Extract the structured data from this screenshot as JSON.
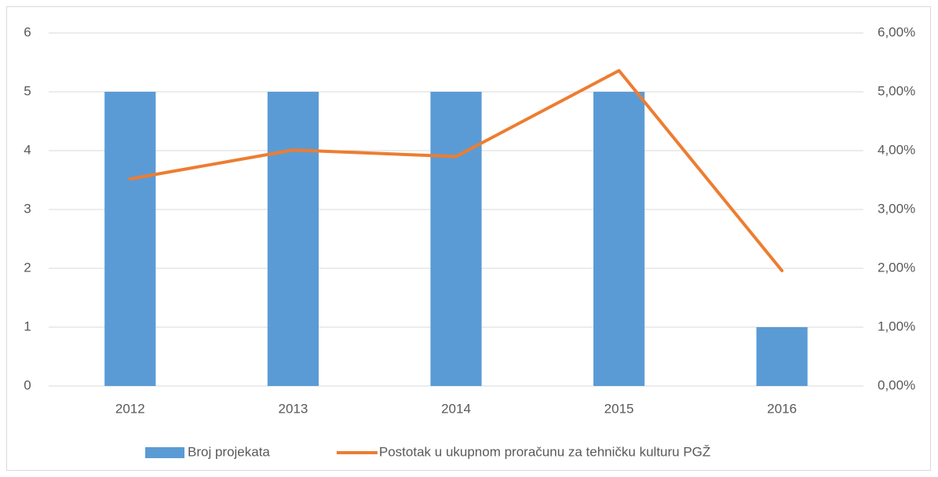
{
  "chart_data": {
    "type": "bar_line",
    "categories": [
      "2012",
      "2013",
      "2014",
      "2015",
      "2016"
    ],
    "series": [
      {
        "name": "Broj projekata",
        "type": "bar",
        "color": "#5b9bd5",
        "values": [
          5,
          5,
          5,
          5,
          1
        ]
      },
      {
        "name": "Postotak u ukupnom proračunu za tehničku kulturu PGŽ",
        "type": "line",
        "axis": "y2",
        "color": "#ed7d31",
        "values": [
          3.52,
          4.01,
          3.9,
          5.36,
          1.96
        ]
      }
    ],
    "ylim": [
      0,
      6
    ],
    "yticks": [
      0,
      1,
      2,
      3,
      4,
      5,
      6
    ],
    "y2lim": [
      0,
      6
    ],
    "y2ticks": [
      {
        "value": 0,
        "label": "0,00%"
      },
      {
        "value": 1,
        "label": "1,00%"
      },
      {
        "value": 2,
        "label": "2,00%"
      },
      {
        "value": 3,
        "label": "3,00%"
      },
      {
        "value": 4,
        "label": "4,00%"
      },
      {
        "value": 5,
        "label": "5,00%"
      },
      {
        "value": 6,
        "label": "6,00%"
      }
    ],
    "grid": true,
    "legend": "bottom"
  }
}
